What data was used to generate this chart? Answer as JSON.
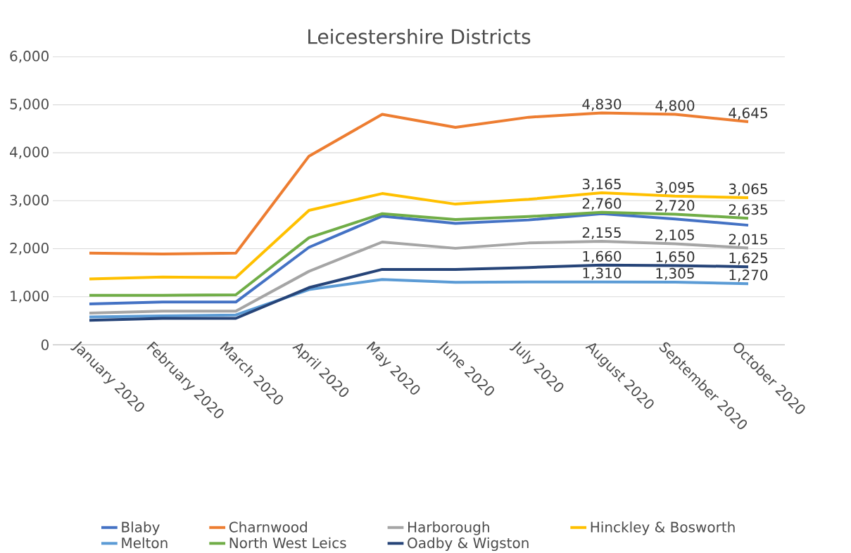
{
  "chart_data": {
    "type": "line",
    "title": "Leicestershire Districts",
    "categories": [
      "January 2020",
      "February 2020",
      "March 2020",
      "April 2020",
      "May 2020",
      "June 2020",
      "July 2020",
      "August 2020",
      "September 2020",
      "October 2020"
    ],
    "series": [
      {
        "name": "Blaby",
        "color": "#4472c4",
        "values": [
          850,
          890,
          890,
          2030,
          2680,
          2530,
          2600,
          2730,
          2620,
          2490
        ]
      },
      {
        "name": "Charnwood",
        "color": "#ed7d31",
        "values": [
          1910,
          1890,
          1910,
          3930,
          4800,
          4530,
          4740,
          4830,
          4800,
          4645
        ],
        "value_labels": [
          null,
          null,
          null,
          null,
          null,
          null,
          null,
          "4,830",
          "4,800",
          "4,645"
        ]
      },
      {
        "name": "Harborough",
        "color": "#a5a5a5",
        "values": [
          660,
          700,
          700,
          1530,
          2140,
          2010,
          2120,
          2155,
          2105,
          2015
        ],
        "value_labels": [
          null,
          null,
          null,
          null,
          null,
          null,
          null,
          "2,155",
          "2,105",
          "2,015"
        ]
      },
      {
        "name": "Hinckley & Bosworth",
        "color": "#ffc000",
        "values": [
          1370,
          1410,
          1400,
          2800,
          3150,
          2930,
          3030,
          3165,
          3095,
          3065
        ],
        "value_labels": [
          null,
          null,
          null,
          null,
          null,
          null,
          null,
          "3,165",
          "3,095",
          "3,065"
        ]
      },
      {
        "name": "Melton",
        "color": "#5b9bd5",
        "values": [
          580,
          600,
          620,
          1150,
          1360,
          1300,
          1310,
          1310,
          1305,
          1270
        ],
        "value_labels": [
          null,
          null,
          null,
          null,
          null,
          null,
          null,
          "1,310",
          "1,305",
          "1,270"
        ]
      },
      {
        "name": "North West Leics",
        "color": "#70ad47",
        "values": [
          1030,
          1030,
          1040,
          2230,
          2730,
          2610,
          2670,
          2760,
          2720,
          2635
        ],
        "value_labels": [
          null,
          null,
          null,
          null,
          null,
          null,
          null,
          "2,760",
          "2,720",
          "2,635"
        ]
      },
      {
        "name": "Oadby & Wigston",
        "color": "#264478",
        "values": [
          510,
          550,
          550,
          1190,
          1570,
          1570,
          1610,
          1660,
          1650,
          1625
        ],
        "value_labels": [
          null,
          null,
          null,
          null,
          null,
          null,
          null,
          "1,660",
          "1,650",
          "1,625"
        ]
      }
    ],
    "ylim": [
      0,
      6000
    ],
    "yticks": [
      0,
      {
        "value": 1000,
        "label": "1,000"
      },
      {
        "value": 2000,
        "label": "2,000"
      },
      {
        "value": 3000,
        "label": "3,000"
      },
      {
        "value": 4000,
        "label": "4,000"
      },
      {
        "value": 5000,
        "label": "5,000"
      },
      {
        "value": 6000,
        "label": "6,000"
      }
    ],
    "grid": "y",
    "legend": "bottom",
    "line_style": "solid"
  }
}
